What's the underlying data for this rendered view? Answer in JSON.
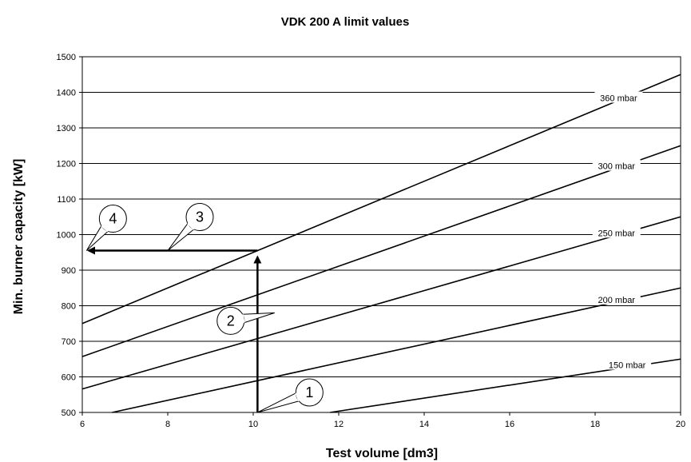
{
  "chart_data": {
    "type": "line",
    "title": "VDK 200 A limit values",
    "xlabel": "Test volume [dm3]",
    "ylabel": "Min. burner capacity [kW]",
    "xlim": [
      6,
      20
    ],
    "ylim": [
      500,
      1500
    ],
    "xticks": [
      6,
      8,
      10,
      12,
      14,
      16,
      18,
      20
    ],
    "yticks": [
      500,
      600,
      700,
      800,
      900,
      1000,
      1100,
      1200,
      1300,
      1400,
      1500
    ],
    "grid": "horizontal",
    "series": [
      {
        "name": "360 mbar",
        "x": [
          6,
          20
        ],
        "y": [
          750,
          1450
        ]
      },
      {
        "name": "300 mbar",
        "x": [
          6,
          20
        ],
        "y": [
          657,
          1250
        ]
      },
      {
        "name": "250 mbar",
        "x": [
          6,
          20
        ],
        "y": [
          566,
          1050
        ]
      },
      {
        "name": "200 mbar",
        "x": [
          6.7,
          20
        ],
        "y": [
          500,
          850
        ]
      },
      {
        "name": "150 mbar",
        "x": [
          11.8,
          20
        ],
        "y": [
          500,
          650
        ]
      }
    ],
    "annotations": [
      {
        "label": "1",
        "target": [
          10.1,
          500
        ]
      },
      {
        "label": "2",
        "target": [
          10.5,
          780
        ]
      },
      {
        "label": "3",
        "target": [
          8,
          955
        ]
      },
      {
        "label": "4",
        "target": [
          6.1,
          955
        ]
      }
    ],
    "reading_path": {
      "x_start": 10.1,
      "y_start": 500,
      "y_end": 955,
      "x_end": 6
    }
  }
}
